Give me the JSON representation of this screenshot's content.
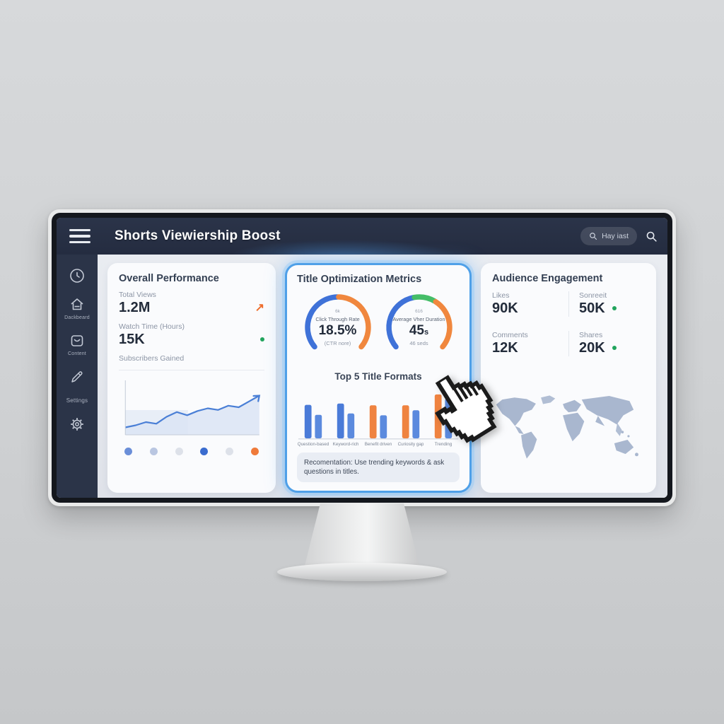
{
  "header": {
    "title": "Shorts Viewiership Boost",
    "search_text": "Hay iast"
  },
  "sidebar": {
    "items": [
      {
        "icon": "clock-icon",
        "label": ""
      },
      {
        "icon": "home-icon",
        "label": "Dackbeard"
      },
      {
        "icon": "content-icon",
        "label": "Content"
      },
      {
        "icon": "pencil-icon",
        "label": ""
      },
      {
        "icon": "settings-text",
        "label": "Settings"
      },
      {
        "icon": "gear-icon",
        "label": ""
      }
    ]
  },
  "overall_performance": {
    "title": "Overall Performance",
    "metrics": [
      {
        "label": "Total Views",
        "value": "1.2M",
        "indicator": "trend-up",
        "glyph": "↗",
        "indicator_color": "#ee6c2b"
      },
      {
        "label": "Watch Time (Hours)",
        "value": "15K",
        "indicator": "dot",
        "indicator_color": "#21a45d"
      },
      {
        "label": "Subscribers Gained",
        "value": "",
        "indicator": "none"
      }
    ],
    "trend_chart": {
      "type": "line",
      "color": "#4a7fd6",
      "fill": "#d9e3f4",
      "y": [
        14,
        18,
        24,
        21,
        34,
        43,
        37,
        45,
        50,
        47,
        55,
        52,
        63,
        74
      ]
    },
    "carousel_dots": [
      "#6a8ed8",
      "#b9c6e1",
      "#dde1e9",
      "#3a6ccf",
      "#dde1e9",
      "#ef7a3a"
    ]
  },
  "title_optimization": {
    "title": "Title Optimization Metrics",
    "accent_border": "#4fa0e8",
    "gauges": [
      {
        "top_label": "6k",
        "label": "Click Through Rate",
        "value": "18.5%",
        "unit": "",
        "sub_label": "(CTR nore)",
        "segments": [
          {
            "color": "#3f72d8",
            "frac": 0.5
          },
          {
            "color": "#f0873e",
            "frac": 0.5
          }
        ]
      },
      {
        "top_label": "616",
        "label": "Average Vher Duration",
        "value": "45",
        "unit": "s",
        "sub_label": "46 seds",
        "segments": [
          {
            "color": "#3f72d8",
            "frac": 0.46
          },
          {
            "color": "#45bd68",
            "frac": 0.16
          },
          {
            "color": "#f0873e",
            "frac": 0.38
          }
        ]
      }
    ],
    "bar_chart": {
      "type": "bar",
      "title": "Top 5 Title Formats",
      "categories": [
        "Question-based",
        "Keyword-rich",
        "Benefit driven",
        "Curiosity gap",
        "Trending"
      ],
      "series": [
        {
          "name": "primary",
          "values": [
            74,
            77,
            73,
            73,
            97
          ],
          "colors": [
            "#4a7bd8",
            "#4a7bd8",
            "#ef8340",
            "#ef8340",
            "#ef8340"
          ]
        },
        {
          "name": "secondary",
          "values": [
            52,
            55,
            51,
            62,
            88
          ],
          "colors": [
            "#5b8ade",
            "#5b8ade",
            "#5b8ade",
            "#5b8ade",
            "#5b8ade"
          ]
        }
      ],
      "ylim": [
        0,
        100
      ]
    },
    "recommendation": "Recomentation: Use trending keywords & ask questions in titles."
  },
  "audience_engagement": {
    "title": "Audience Engagement",
    "dot_color": "#21a45d",
    "stats": [
      {
        "label": "Likes",
        "value": "90K",
        "dot": false
      },
      {
        "label": "Sonreeit",
        "value": "50K",
        "dot": true
      },
      {
        "label": "Comments",
        "value": "12K",
        "dot": false
      },
      {
        "label": "Shares",
        "value": "20K",
        "dot": true
      }
    ]
  }
}
